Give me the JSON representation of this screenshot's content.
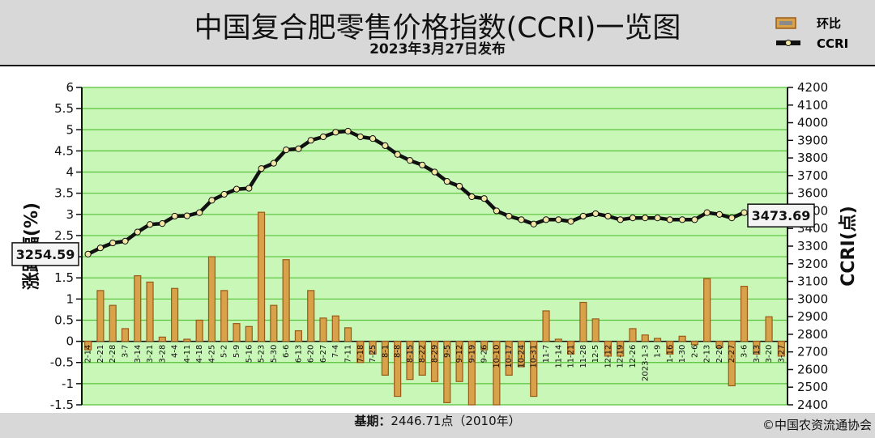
{
  "header": {
    "title": "中国复合肥零售价格指数(CCRI)一览图",
    "subtitle": "2023年3月27日发布"
  },
  "legend": {
    "bar_label": "环比",
    "line_label": "CCRI"
  },
  "footer": {
    "base_label": "基期：",
    "base_value": "2446.71点（2010年）",
    "copyright": "©中国农资流通协会"
  },
  "colors": {
    "plot_bg": "#c8f7b8",
    "grid": "#58c23a",
    "bar_fill": "#d7a24a",
    "bar_edge": "#9a5a18",
    "line": "#111111",
    "marker": "#f2e7a6"
  },
  "chart_data": {
    "type": "bar+line",
    "ylabel_left": "涨跌幅(%)",
    "ylabel_right": "CCRI(点)",
    "ylim_left": [
      -1.5,
      6
    ],
    "yticks_left": [
      "6",
      "5.5",
      "5",
      "4.5",
      "4",
      "3.5",
      "3",
      "2.5",
      "2",
      "1.5",
      "1",
      "0.5",
      "0",
      "-0.5",
      "-1",
      "-1.5"
    ],
    "ylim_right": [
      2400,
      4200
    ],
    "yticks_right": [
      "4200",
      "4100",
      "4000",
      "3900",
      "3800",
      "3700",
      "3600",
      "3500",
      "3400",
      "3300",
      "3200",
      "3100",
      "3000",
      "2900",
      "2800",
      "2700",
      "2600",
      "2500",
      "2400"
    ],
    "grid": true,
    "categories": [
      "2-14",
      "2-21",
      "2-28",
      "3-7",
      "3-14",
      "3-21",
      "3-28",
      "4-4",
      "4-11",
      "4-18",
      "4-25",
      "5-2",
      "5-9",
      "5-16",
      "5-23",
      "5-30",
      "6-6",
      "6-13",
      "6-20",
      "6-27",
      "7-4",
      "7-11",
      "7-18",
      "7-25",
      "8-1",
      "8-8",
      "8-15",
      "8-22",
      "8-29",
      "9-5",
      "9-12",
      "9-19",
      "9-26",
      "10-10",
      "10-17",
      "10-24",
      "10-31",
      "11-7",
      "11-14",
      "11-21",
      "11-28",
      "12-5",
      "12-12",
      "12-19",
      "12-26",
      "2023-1-3",
      "1-9",
      "1-16",
      "1-30",
      "2-6",
      "2-13",
      "2-20",
      "2-27",
      "3-6",
      "3-13",
      "3-20",
      "3-27"
    ],
    "series": [
      {
        "name": "环比",
        "type": "bar",
        "values": [
          -0.2,
          1.2,
          0.85,
          0.3,
          1.55,
          1.4,
          0.1,
          1.25,
          0.05,
          0.5,
          2.0,
          1.2,
          0.42,
          0.35,
          3.05,
          0.85,
          1.93,
          0.25,
          1.2,
          0.55,
          0.6,
          0.32,
          -0.5,
          -0.3,
          -0.8,
          -1.3,
          -0.9,
          -0.8,
          -0.95,
          -1.45,
          -0.95,
          -1.5,
          -0.2,
          -1.5,
          -0.8,
          -0.6,
          -1.3,
          0.72,
          0.05,
          -0.3,
          0.92,
          0.53,
          -0.35,
          -0.35,
          0.3,
          0.15,
          0.07,
          -0.3,
          0.12,
          -0.08,
          1.48,
          -0.15,
          -1.05,
          1.3,
          -0.3,
          0.58,
          -0.35
        ]
      },
      {
        "name": "CCRI",
        "type": "line",
        "values": [
          3254.59,
          3290,
          3318,
          3328,
          3380,
          3423,
          3428,
          3470,
          3472,
          3490,
          3560,
          3594,
          3623,
          3628,
          3740,
          3770,
          3846,
          3852,
          3900,
          3920,
          3946,
          3952,
          3920,
          3910,
          3870,
          3820,
          3786,
          3760,
          3720,
          3667,
          3640,
          3580,
          3570,
          3500,
          3470,
          3450,
          3425,
          3450,
          3450,
          3440,
          3470,
          3484,
          3470,
          3450,
          3460,
          3460,
          3460,
          3450,
          3450,
          3450,
          3490,
          3480,
          3460,
          3490,
          3473.69,
          3480,
          3473.69
        ],
        "start_label": "3254.59",
        "end_label": "3473.69"
      }
    ]
  }
}
